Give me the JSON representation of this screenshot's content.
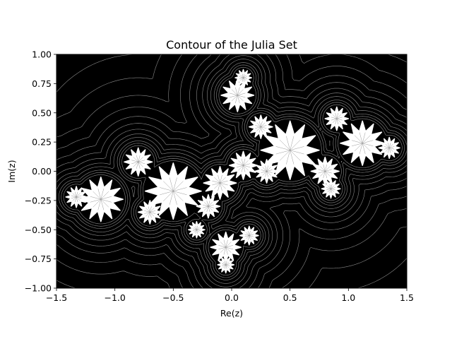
{
  "chart_data": {
    "type": "contour",
    "title": "Contour of the Julia Set",
    "xlabel": "Re(z)",
    "ylabel": "Im(z)",
    "xlim": [
      -1.5,
      1.5
    ],
    "ylim": [
      -1.0,
      1.0
    ],
    "x_ticks": [
      -1.5,
      -1.0,
      -0.5,
      0.0,
      0.5,
      1.0,
      1.5
    ],
    "y_ticks": [
      -1.0,
      -0.75,
      -0.5,
      -0.25,
      0.0,
      0.25,
      0.5,
      0.75,
      1.0
    ],
    "x_tick_labels": [
      "−1.5",
      "−1.0",
      "−0.5",
      "0.0",
      "0.5",
      "1.0",
      "1.5"
    ],
    "y_tick_labels": [
      "−1.00",
      "−0.75",
      "−0.50",
      "−0.25",
      "0.00",
      "0.25",
      "0.50",
      "0.75",
      "1.00"
    ],
    "grid": false,
    "colors": {
      "background": "#000000",
      "set": "#ffffff",
      "contour_lines": "#8a8a8a"
    },
    "set_blobs": [
      {
        "x": -1.12,
        "y": -0.24,
        "r": 0.19
      },
      {
        "x": -1.33,
        "y": -0.22,
        "r": 0.09
      },
      {
        "x": -0.8,
        "y": 0.08,
        "r": 0.12
      },
      {
        "x": -0.5,
        "y": -0.17,
        "r": 0.24
      },
      {
        "x": -0.7,
        "y": -0.35,
        "r": 0.1
      },
      {
        "x": -0.2,
        "y": -0.3,
        "r": 0.1
      },
      {
        "x": -0.1,
        "y": -0.1,
        "r": 0.14
      },
      {
        "x": 0.1,
        "y": 0.05,
        "r": 0.12
      },
      {
        "x": 0.05,
        "y": 0.65,
        "r": 0.14
      },
      {
        "x": 0.1,
        "y": 0.8,
        "r": 0.07
      },
      {
        "x": 0.25,
        "y": 0.38,
        "r": 0.1
      },
      {
        "x": 0.5,
        "y": 0.18,
        "r": 0.25
      },
      {
        "x": 0.3,
        "y": 0.0,
        "r": 0.1
      },
      {
        "x": 0.8,
        "y": 0.0,
        "r": 0.12
      },
      {
        "x": 0.85,
        "y": -0.15,
        "r": 0.08
      },
      {
        "x": 1.12,
        "y": 0.24,
        "r": 0.19
      },
      {
        "x": 1.35,
        "y": 0.2,
        "r": 0.09
      },
      {
        "x": 0.9,
        "y": 0.45,
        "r": 0.1
      },
      {
        "x": -0.05,
        "y": -0.65,
        "r": 0.13
      },
      {
        "x": -0.05,
        "y": -0.8,
        "r": 0.07
      },
      {
        "x": -0.3,
        "y": -0.5,
        "r": 0.07
      },
      {
        "x": 0.15,
        "y": -0.55,
        "r": 0.08
      }
    ],
    "contour_levels": [
      0.02,
      0.04,
      0.06,
      0.09,
      0.12,
      0.16,
      0.21,
      0.27,
      0.35,
      0.45,
      0.6,
      0.8
    ]
  }
}
